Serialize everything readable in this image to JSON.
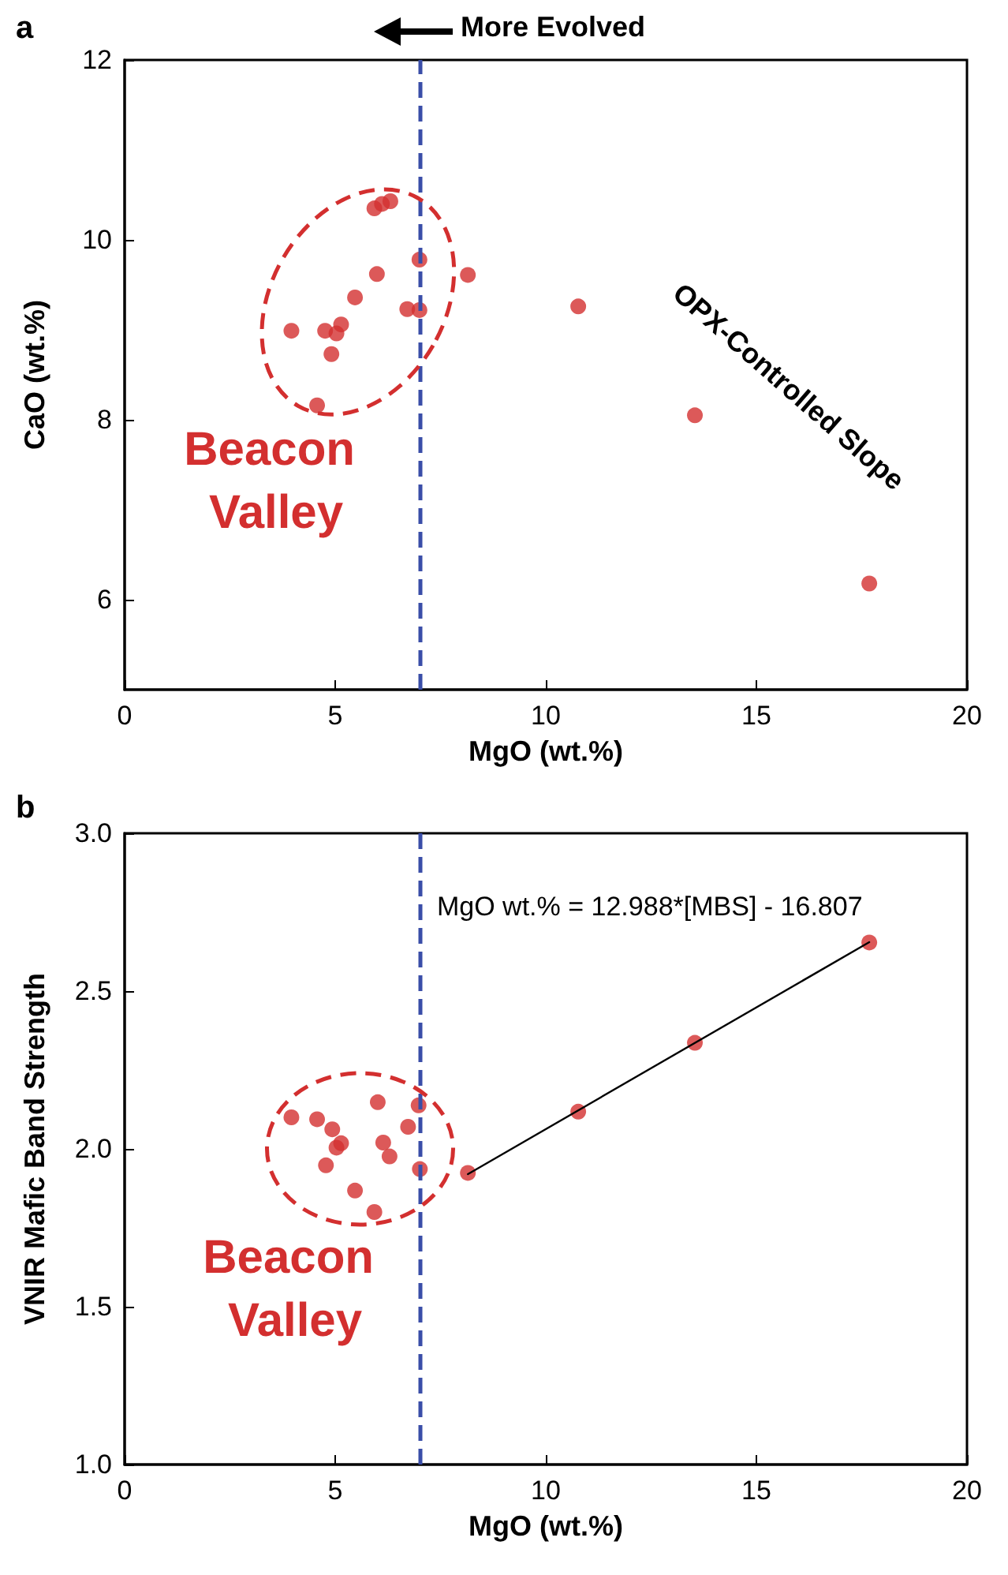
{
  "chart_data": [
    {
      "type": "scatter",
      "xlabel": "MgO (wt.%)",
      "ylabel": "CaO (wt.%)",
      "xlim": [
        0,
        20
      ],
      "xticks": [
        0,
        5,
        10,
        15,
        20
      ],
      "ylim": [
        5,
        12
      ],
      "yticks": [
        6,
        8,
        10,
        12
      ],
      "grid": false,
      "marker": "circle",
      "series": [
        {
          "color": "#d32f2f",
          "x": [
            3.96,
            4.57,
            4.76,
            4.91,
            5.03,
            5.14,
            5.47,
            5.93,
            6.11,
            6.31,
            5.99,
            7.0,
            6.71,
            7.0,
            8.15,
            10.77,
            13.54,
            17.68
          ],
          "values": [
            8.99,
            8.16,
            8.99,
            8.73,
            8.96,
            9.06,
            9.36,
            10.35,
            10.4,
            10.43,
            9.62,
            9.78,
            9.23,
            9.22,
            9.61,
            9.26,
            8.05,
            6.18
          ]
        }
      ],
      "ref_lines": [
        {
          "axis": "x",
          "value": 7,
          "color": "#3a4ea8",
          "line_style": "dashed"
        }
      ],
      "annotations": [
        "a",
        "More Evolved",
        "Beacon Valley",
        "OPX-Controlled Slope"
      ]
    },
    {
      "type": "scatter",
      "xlabel": "MgO (wt.%)",
      "ylabel": "VNIR Mafic Band Strength",
      "xlim": [
        0,
        20
      ],
      "xticks": [
        0,
        5,
        10,
        15,
        20
      ],
      "ylim": [
        1,
        3
      ],
      "yticks": [
        {
          "value": 1,
          "label": "1.0"
        },
        {
          "value": 1.5,
          "label": "1.5"
        },
        {
          "value": 2,
          "label": "2.0"
        },
        {
          "value": 2.5,
          "label": "2.5"
        },
        {
          "value": 3,
          "label": "3.0"
        }
      ],
      "grid": false,
      "marker": "circle",
      "series": [
        {
          "type": "line",
          "color": "#000000",
          "marker": "none",
          "line_style": "solid",
          "x": [
            8.15,
            17.68
          ],
          "values": [
            1.92,
            2.655
          ]
        },
        {
          "color": "#d32f2f",
          "x": [
            3.96,
            4.57,
            4.93,
            4.78,
            5.03,
            5.14,
            5.47,
            5.93,
            6.01,
            6.14,
            6.29,
            6.73,
            6.98,
            7.01,
            8.15,
            10.77,
            13.54,
            17.68
          ],
          "values": [
            2.1,
            2.094,
            2.062,
            1.948,
            2.004,
            2.018,
            1.868,
            1.8,
            2.148,
            2.02,
            1.976,
            2.07,
            2.138,
            1.936,
            1.924,
            2.118,
            2.336,
            2.654
          ]
        }
      ],
      "ref_lines": [
        {
          "axis": "x",
          "value": 7,
          "color": "#3a4ea8",
          "line_style": "dashed"
        }
      ],
      "annotations": [
        "b",
        "Beacon Valley",
        "MgO wt.% = 12.988*[MBS] - 16.807"
      ]
    }
  ]
}
